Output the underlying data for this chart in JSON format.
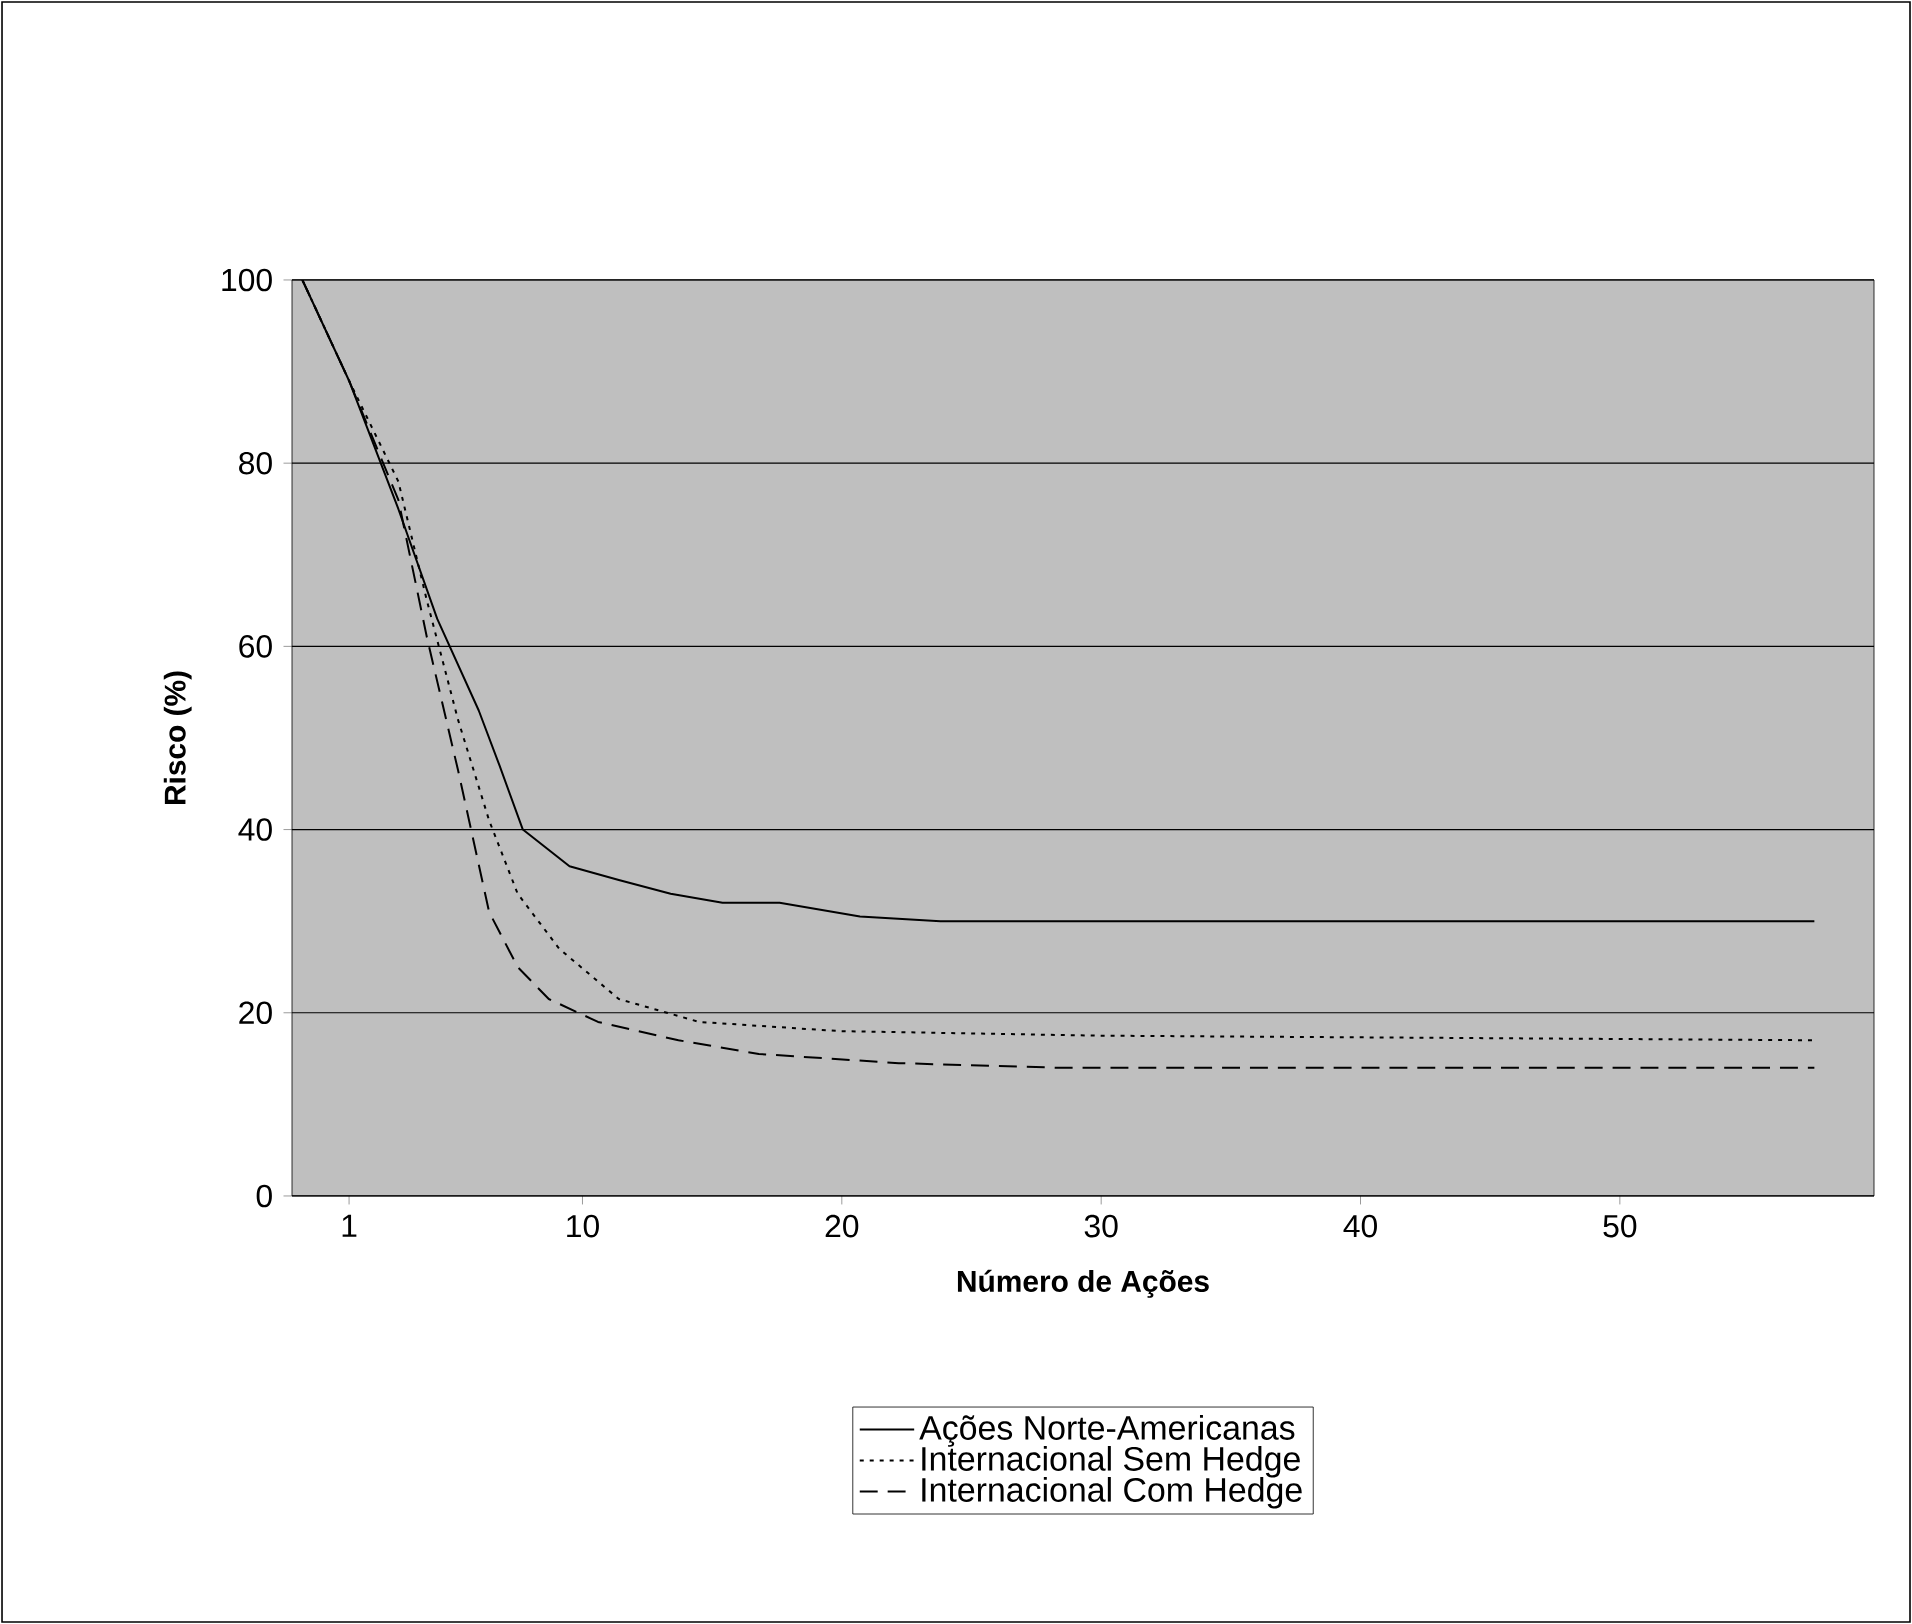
{
  "chart_data": {
    "type": "line",
    "xlabel": "Número de Ações",
    "ylabel": "Risco (%)",
    "xlim": [
      -1.2,
      59.8
    ],
    "ylim": [
      0,
      100
    ],
    "xticks": [
      1,
      10,
      20,
      30,
      40,
      50
    ],
    "yticks": [
      0,
      20,
      40,
      60,
      80,
      100
    ],
    "grid": "y",
    "legend": "bottom",
    "marker": "none",
    "series": [
      {
        "name": "Ações Norte-Americanas",
        "color": "#000000",
        "line_style": "solid",
        "x": [
          -0.8,
          1,
          2.9,
          4.4,
          6.0,
          6.8,
          7.7,
          9.5,
          11.4,
          13.4,
          15.4,
          17.6,
          20.7,
          23.8,
          57.5
        ],
        "values": [
          100,
          89,
          75,
          63,
          53,
          47,
          40,
          36,
          34.5,
          33,
          32,
          32,
          30.5,
          30,
          30
        ]
      },
      {
        "name": "Internacional Sem Hedge",
        "color": "#000000",
        "line_style": "dotted",
        "x": [
          -0.8,
          1,
          2.9,
          4.0,
          5.2,
          6.4,
          7.5,
          9.1,
          11.4,
          14.5,
          19.9,
          29.9,
          57.5
        ],
        "values": [
          100,
          89,
          78,
          65,
          52,
          41,
          33,
          27,
          21.5,
          19,
          18,
          17.5,
          17
        ]
      },
      {
        "name": "Internacional Com Hedge",
        "color": "#000000",
        "line_style": "dashed",
        "x": [
          -0.8,
          1,
          2.9,
          4.0,
          5.2,
          6.4,
          7.5,
          8.7,
          10.6,
          13.7,
          16.8,
          22.2,
          28.3,
          57.5
        ],
        "values": [
          100,
          89,
          76,
          61,
          46.5,
          31,
          25,
          21.5,
          19,
          17,
          15.5,
          14.5,
          14,
          14
        ]
      }
    ]
  }
}
